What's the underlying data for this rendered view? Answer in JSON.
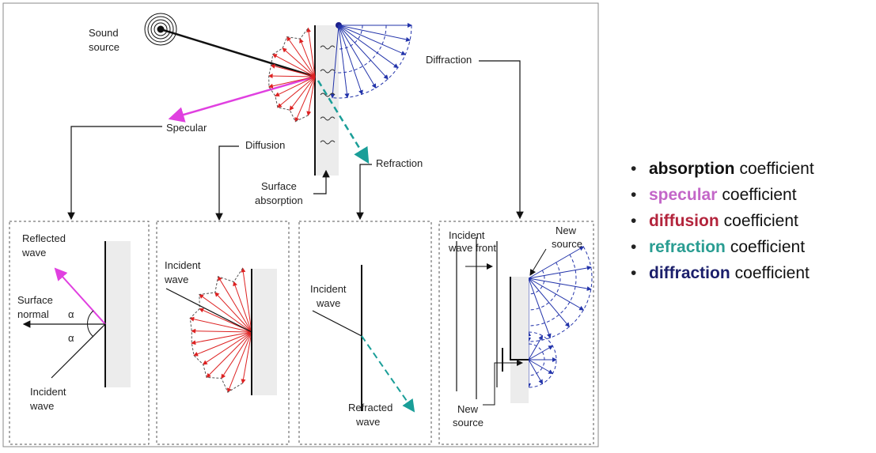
{
  "overview": {
    "sound_source": [
      "Sound",
      "source"
    ],
    "specular": "Specular",
    "diffusion": "Diffusion",
    "surface_absorption": [
      "Surface",
      "absorption"
    ],
    "refraction": "Refraction",
    "diffraction": "Diffraction"
  },
  "panels": {
    "specular": {
      "reflected_wave": [
        "Reflected",
        "wave"
      ],
      "surface_normal": [
        "Surface",
        "normal"
      ],
      "angle_top": "α",
      "angle_bottom": "α",
      "incident_wave": [
        "Incident",
        "wave"
      ]
    },
    "diffusion": {
      "incident_wave": [
        "Incident",
        "wave"
      ]
    },
    "refraction": {
      "incident_wave": [
        "Incident",
        "wave"
      ],
      "refracted_wave": [
        "Refracted",
        "wave"
      ]
    },
    "diffraction": {
      "incident_wave_front": [
        "Incident",
        "wave front"
      ],
      "new_source_top": [
        "New",
        "source"
      ],
      "new_source_bottom": [
        "New",
        "source"
      ]
    }
  },
  "coefficients": [
    {
      "term": "absorption",
      "rest": "coefficient",
      "color": "#111111"
    },
    {
      "term": "specular",
      "rest": "coefficient",
      "color": "#c366c8"
    },
    {
      "term": "diffusion",
      "rest": "coefficient",
      "color": "#b3243c"
    },
    {
      "term": "refraction",
      "rest": "coefficient",
      "color": "#2a9d92"
    },
    {
      "term": "diffraction",
      "rest": "coefficient",
      "color": "#1b1f6b"
    }
  ]
}
